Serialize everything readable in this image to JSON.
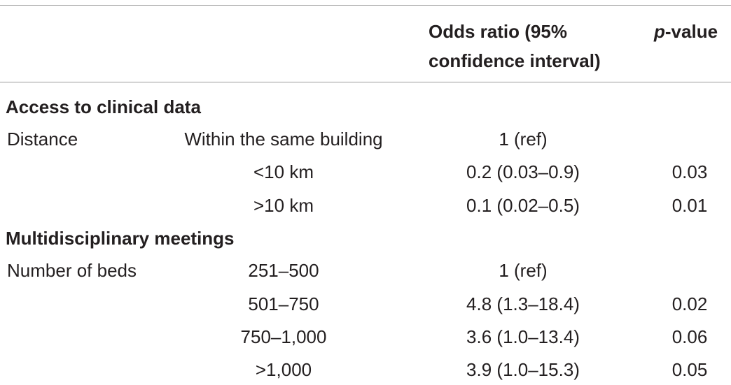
{
  "table": {
    "header": {
      "or_line1": "Odds ratio (95%",
      "or_line2": "confidence interval)",
      "p_italic": "p",
      "p_rest": "-value"
    },
    "sections": [
      {
        "title": "Access to clinical data",
        "variable": "Distance",
        "rows": [
          {
            "level": "Within the same building",
            "or": "1 (ref)",
            "p": ""
          },
          {
            "level": "<10 km",
            "or": "0.2 (0.03–0.9)",
            "p": "0.03"
          },
          {
            "level": ">10 km",
            "or": "0.1 (0.02–0.5)",
            "p": "0.01"
          }
        ]
      },
      {
        "title": "Multidisciplinary meetings",
        "variable": "Number of beds",
        "rows": [
          {
            "level": "251–500",
            "or": "1 (ref)",
            "p": ""
          },
          {
            "level": "501–750",
            "or": "4.8 (1.3–18.4)",
            "p": "0.02"
          },
          {
            "level": "750–1,000",
            "or": "3.6 (1.0–13.4)",
            "p": "0.06"
          },
          {
            "level": ">1,000",
            "or": "3.9 (1.0–15.3)",
            "p": "0.05"
          }
        ]
      }
    ]
  }
}
